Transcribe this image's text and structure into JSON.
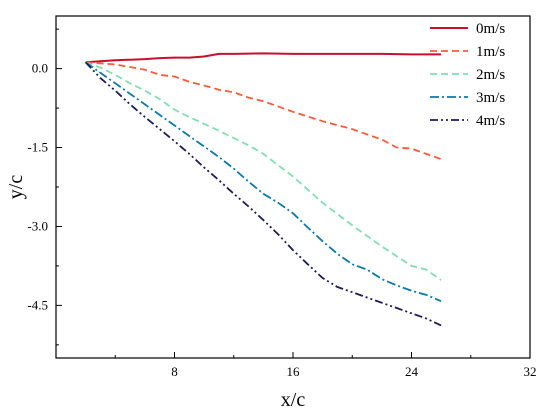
{
  "chart_data": {
    "type": "line",
    "xlabel": "x/c",
    "ylabel": "y/c",
    "xlim": [
      0,
      32
    ],
    "ylim": [
      -5.5,
      1.0
    ],
    "xticks": [
      8,
      16,
      24,
      32
    ],
    "xtick_labels": [
      "8",
      "16",
      "24",
      "32"
    ],
    "yticks": [
      0.0,
      -1.5,
      -3.0,
      -4.5
    ],
    "ytick_labels": [
      "0.0",
      "-1.5",
      "-3.0",
      "-4.5"
    ],
    "grid": false,
    "legend_position": "top-right",
    "series": [
      {
        "name": "0m/s",
        "color": "#c8102e",
        "dash": "solid",
        "x": [
          2.0,
          3.0,
          4.0,
          5.0,
          6.0,
          7.0,
          8.0,
          9.0,
          10.0,
          11.0,
          12.0,
          14.0,
          16.0,
          18.0,
          20.0,
          22.0,
          24.0,
          26.0
        ],
        "y": [
          0.12,
          0.14,
          0.16,
          0.17,
          0.18,
          0.2,
          0.21,
          0.21,
          0.23,
          0.28,
          0.28,
          0.29,
          0.28,
          0.28,
          0.28,
          0.28,
          0.27,
          0.27
        ]
      },
      {
        "name": "1m/s",
        "color": "#ff5a36",
        "dash": "dashed",
        "x": [
          2.0,
          4.0,
          6.0,
          7.0,
          8.0,
          9.0,
          10.0,
          11.0,
          12.0,
          13.0,
          14.0,
          16.0,
          18.0,
          20.0,
          22.0,
          23.0,
          24.0,
          25.0,
          26.0
        ],
        "y": [
          0.12,
          0.08,
          -0.02,
          -0.12,
          -0.15,
          -0.25,
          -0.32,
          -0.4,
          -0.45,
          -0.55,
          -0.62,
          -0.82,
          -1.0,
          -1.15,
          -1.35,
          -1.5,
          -1.52,
          -1.62,
          -1.72
        ]
      },
      {
        "name": "2m/s",
        "color": "#7fe0b0",
        "dash": "dashed",
        "x": [
          2.0,
          3.0,
          4.0,
          5.0,
          6.0,
          7.0,
          8.0,
          9.0,
          10.0,
          11.0,
          12.0,
          13.0,
          14.0,
          16.0,
          18.0,
          20.0,
          22.0,
          24.0,
          25.0,
          26.0
        ],
        "y": [
          0.12,
          0.02,
          -0.12,
          -0.28,
          -0.42,
          -0.58,
          -0.78,
          -0.92,
          -1.05,
          -1.18,
          -1.32,
          -1.46,
          -1.62,
          -2.05,
          -2.55,
          -2.98,
          -3.38,
          -3.75,
          -3.82,
          -4.02
        ]
      },
      {
        "name": "3m/s",
        "color": "#0a7aa8",
        "dash": "dashdot",
        "x": [
          2.0,
          3.0,
          4.0,
          5.0,
          6.0,
          7.0,
          8.0,
          9.0,
          10.0,
          11.0,
          12.0,
          13.0,
          14.0,
          15.0,
          16.0,
          17.0,
          18.0,
          19.0,
          20.0,
          21.0,
          22.0,
          23.0,
          24.0,
          25.0,
          26.0
        ],
        "y": [
          0.12,
          -0.08,
          -0.28,
          -0.48,
          -0.68,
          -0.88,
          -1.08,
          -1.28,
          -1.48,
          -1.68,
          -1.9,
          -2.15,
          -2.38,
          -2.55,
          -2.75,
          -3.02,
          -3.28,
          -3.52,
          -3.72,
          -3.82,
          -4.0,
          -4.12,
          -4.22,
          -4.3,
          -4.42
        ]
      },
      {
        "name": "4m/s",
        "color": "#1c1a5e",
        "dash": "dashdotdot",
        "x": [
          2.0,
          3.0,
          4.0,
          5.0,
          6.0,
          7.0,
          8.0,
          9.0,
          10.0,
          11.0,
          12.0,
          13.0,
          14.0,
          15.0,
          16.0,
          17.0,
          18.0,
          19.0,
          20.0,
          21.0,
          22.0,
          23.0,
          24.0,
          25.0,
          26.0
        ],
        "y": [
          0.12,
          -0.18,
          -0.42,
          -0.68,
          -0.92,
          -1.15,
          -1.38,
          -1.62,
          -1.88,
          -2.12,
          -2.38,
          -2.62,
          -2.88,
          -3.15,
          -3.45,
          -3.72,
          -3.98,
          -4.15,
          -4.25,
          -4.35,
          -4.45,
          -4.55,
          -4.65,
          -4.75,
          -4.88
        ]
      }
    ]
  }
}
